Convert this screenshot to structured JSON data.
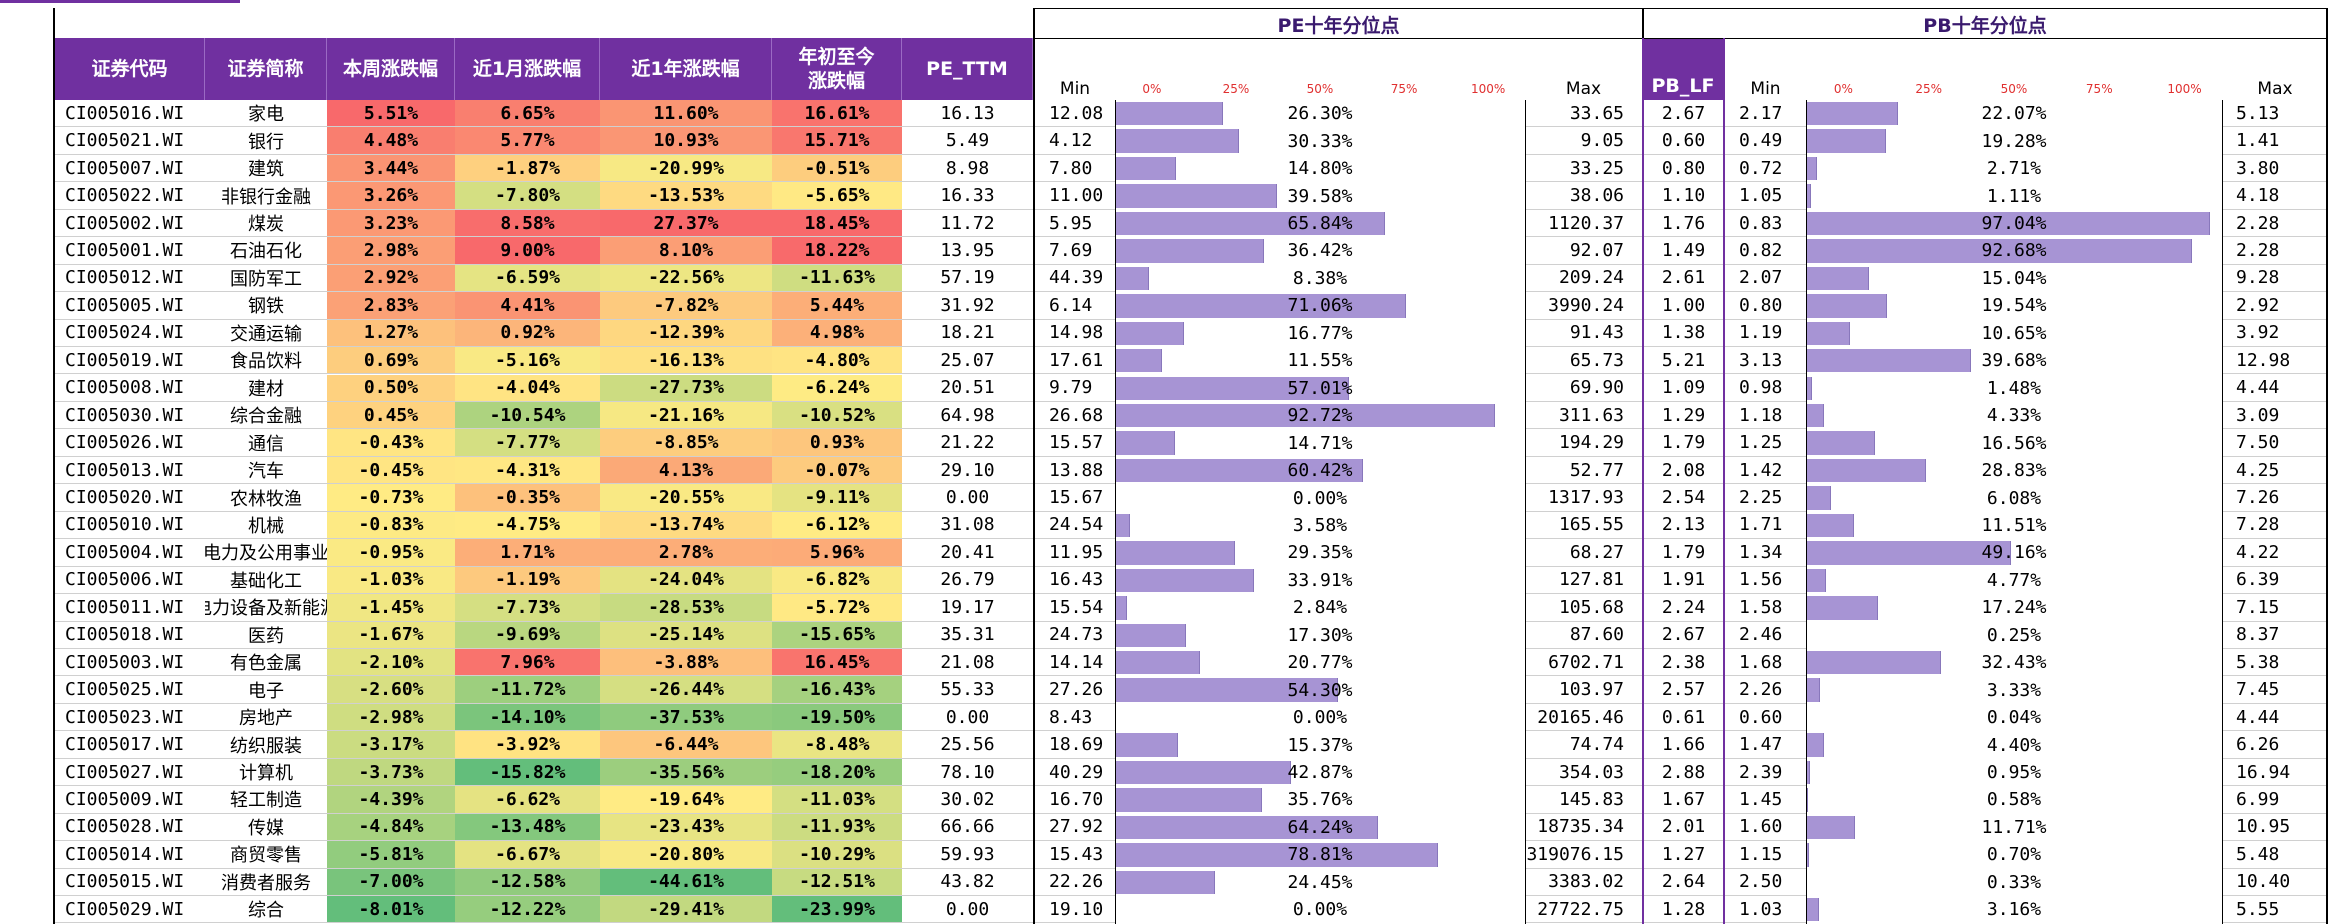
{
  "groups": {
    "pe": "PE十年分位点",
    "pb": "PB十年分位点"
  },
  "headers": {
    "code": "证券代码",
    "name": "证券简称",
    "week": "本周涨跌幅",
    "month": "近1月涨跌幅",
    "year": "近1年涨跌幅",
    "ytd_line1": "年初至今",
    "ytd_line2": "涨跌幅",
    "pe_ttm": "PE_TTM",
    "pb_lf": "PB_LF",
    "min": "Min",
    "max": "Max"
  },
  "scale": [
    "0%",
    "25%",
    "50%",
    "75%",
    "100%"
  ],
  "colors": {
    "header": "#7030a0",
    "bar": "#a794d4",
    "pos_strong": "#f8696b",
    "neutral": "#ffeb84",
    "neg_strong": "#63be7b"
  },
  "rows": [
    {
      "code": "CI005016.WI",
      "name": "家电",
      "week": "5.51%",
      "month": "6.65%",
      "year": "11.60%",
      "ytd": "16.61%",
      "pe": "16.13",
      "pe_min": "12.08",
      "pe_pct": "26.30%",
      "pe_max": "33.65",
      "pb": "2.67",
      "pb_min": "2.17",
      "pb_pct": "22.07%",
      "pb_max": "5.13"
    },
    {
      "code": "CI005021.WI",
      "name": "银行",
      "week": "4.48%",
      "month": "5.77%",
      "year": "10.93%",
      "ytd": "15.71%",
      "pe": "5.49",
      "pe_min": "4.12",
      "pe_pct": "30.33%",
      "pe_max": "9.05",
      "pb": "0.60",
      "pb_min": "0.49",
      "pb_pct": "19.28%",
      "pb_max": "1.41"
    },
    {
      "code": "CI005007.WI",
      "name": "建筑",
      "week": "3.44%",
      "month": "-1.87%",
      "year": "-20.99%",
      "ytd": "-0.51%",
      "pe": "8.98",
      "pe_min": "7.80",
      "pe_pct": "14.80%",
      "pe_max": "33.25",
      "pb": "0.80",
      "pb_min": "0.72",
      "pb_pct": "2.71%",
      "pb_max": "3.80"
    },
    {
      "code": "CI005022.WI",
      "name": "非银行金融",
      "week": "3.26%",
      "month": "-7.80%",
      "year": "-13.53%",
      "ytd": "-5.65%",
      "pe": "16.33",
      "pe_min": "11.00",
      "pe_pct": "39.58%",
      "pe_max": "38.06",
      "pb": "1.10",
      "pb_min": "1.05",
      "pb_pct": "1.11%",
      "pb_max": "4.18"
    },
    {
      "code": "CI005002.WI",
      "name": "煤炭",
      "week": "3.23%",
      "month": "8.58%",
      "year": "27.37%",
      "ytd": "18.45%",
      "pe": "11.72",
      "pe_min": "5.95",
      "pe_pct": "65.84%",
      "pe_max": "1120.37",
      "pb": "1.76",
      "pb_min": "0.83",
      "pb_pct": "97.04%",
      "pb_max": "2.28"
    },
    {
      "code": "CI005001.WI",
      "name": "石油石化",
      "week": "2.98%",
      "month": "9.00%",
      "year": "8.10%",
      "ytd": "18.22%",
      "pe": "13.95",
      "pe_min": "7.69",
      "pe_pct": "36.42%",
      "pe_max": "92.07",
      "pb": "1.49",
      "pb_min": "0.82",
      "pb_pct": "92.68%",
      "pb_max": "2.28"
    },
    {
      "code": "CI005012.WI",
      "name": "国防军工",
      "week": "2.92%",
      "month": "-6.59%",
      "year": "-22.56%",
      "ytd": "-11.63%",
      "pe": "57.19",
      "pe_min": "44.39",
      "pe_pct": "8.38%",
      "pe_max": "209.24",
      "pb": "2.61",
      "pb_min": "2.07",
      "pb_pct": "15.04%",
      "pb_max": "9.28"
    },
    {
      "code": "CI005005.WI",
      "name": "钢铁",
      "week": "2.83%",
      "month": "4.41%",
      "year": "-7.82%",
      "ytd": "5.44%",
      "pe": "31.92",
      "pe_min": "6.14",
      "pe_pct": "71.06%",
      "pe_max": "3990.24",
      "pb": "1.00",
      "pb_min": "0.80",
      "pb_pct": "19.54%",
      "pb_max": "2.92"
    },
    {
      "code": "CI005024.WI",
      "name": "交通运输",
      "week": "1.27%",
      "month": "0.92%",
      "year": "-12.39%",
      "ytd": "4.98%",
      "pe": "18.21",
      "pe_min": "14.98",
      "pe_pct": "16.77%",
      "pe_max": "91.43",
      "pb": "1.38",
      "pb_min": "1.19",
      "pb_pct": "10.65%",
      "pb_max": "3.92"
    },
    {
      "code": "CI005019.WI",
      "name": "食品饮料",
      "week": "0.69%",
      "month": "-5.16%",
      "year": "-16.13%",
      "ytd": "-4.80%",
      "pe": "25.07",
      "pe_min": "17.61",
      "pe_pct": "11.55%",
      "pe_max": "65.73",
      "pb": "5.21",
      "pb_min": "3.13",
      "pb_pct": "39.68%",
      "pb_max": "12.98"
    },
    {
      "code": "CI005008.WI",
      "name": "建材",
      "week": "0.50%",
      "month": "-4.04%",
      "year": "-27.73%",
      "ytd": "-6.24%",
      "pe": "20.51",
      "pe_min": "9.79",
      "pe_pct": "57.01%",
      "pe_max": "69.90",
      "pb": "1.09",
      "pb_min": "0.98",
      "pb_pct": "1.48%",
      "pb_max": "4.44"
    },
    {
      "code": "CI005030.WI",
      "name": "综合金融",
      "week": "0.45%",
      "month": "-10.54%",
      "year": "-21.16%",
      "ytd": "-10.52%",
      "pe": "64.98",
      "pe_min": "26.68",
      "pe_pct": "92.72%",
      "pe_max": "311.63",
      "pb": "1.29",
      "pb_min": "1.18",
      "pb_pct": "4.33%",
      "pb_max": "3.09"
    },
    {
      "code": "CI005026.WI",
      "name": "通信",
      "week": "-0.43%",
      "month": "-7.77%",
      "year": "-8.85%",
      "ytd": "0.93%",
      "pe": "21.22",
      "pe_min": "15.57",
      "pe_pct": "14.71%",
      "pe_max": "194.29",
      "pb": "1.79",
      "pb_min": "1.25",
      "pb_pct": "16.56%",
      "pb_max": "7.50"
    },
    {
      "code": "CI005013.WI",
      "name": "汽车",
      "week": "-0.45%",
      "month": "-4.31%",
      "year": "4.13%",
      "ytd": "-0.07%",
      "pe": "29.10",
      "pe_min": "13.88",
      "pe_pct": "60.42%",
      "pe_max": "52.77",
      "pb": "2.08",
      "pb_min": "1.42",
      "pb_pct": "28.83%",
      "pb_max": "4.25"
    },
    {
      "code": "CI005020.WI",
      "name": "农林牧渔",
      "week": "-0.73%",
      "month": "-0.35%",
      "year": "-20.55%",
      "ytd": "-9.11%",
      "pe": "0.00",
      "pe_min": "15.67",
      "pe_pct": "0.00%",
      "pe_max": "1317.93",
      "pb": "2.54",
      "pb_min": "2.25",
      "pb_pct": "6.08%",
      "pb_max": "7.26"
    },
    {
      "code": "CI005010.WI",
      "name": "机械",
      "week": "-0.83%",
      "month": "-4.75%",
      "year": "-13.74%",
      "ytd": "-6.12%",
      "pe": "31.08",
      "pe_min": "24.54",
      "pe_pct": "3.58%",
      "pe_max": "165.55",
      "pb": "2.13",
      "pb_min": "1.71",
      "pb_pct": "11.51%",
      "pb_max": "7.28"
    },
    {
      "code": "CI005004.WI",
      "name": "电力及公用事业",
      "week": "-0.95%",
      "month": "1.71%",
      "year": "2.78%",
      "ytd": "5.96%",
      "pe": "20.41",
      "pe_min": "11.95",
      "pe_pct": "29.35%",
      "pe_max": "68.27",
      "pb": "1.79",
      "pb_min": "1.34",
      "pb_pct": "49.16%",
      "pb_max": "4.22"
    },
    {
      "code": "CI005006.WI",
      "name": "基础化工",
      "week": "-1.03%",
      "month": "-1.19%",
      "year": "-24.04%",
      "ytd": "-6.82%",
      "pe": "26.79",
      "pe_min": "16.43",
      "pe_pct": "33.91%",
      "pe_max": "127.81",
      "pb": "1.91",
      "pb_min": "1.56",
      "pb_pct": "4.77%",
      "pb_max": "6.39"
    },
    {
      "code": "CI005011.WI",
      "name": "电力设备及新能源",
      "week": "-1.45%",
      "month": "-7.73%",
      "year": "-28.53%",
      "ytd": "-5.72%",
      "pe": "19.17",
      "pe_min": "15.54",
      "pe_pct": "2.84%",
      "pe_max": "105.68",
      "pb": "2.24",
      "pb_min": "1.58",
      "pb_pct": "17.24%",
      "pb_max": "7.15"
    },
    {
      "code": "CI005018.WI",
      "name": "医药",
      "week": "-1.67%",
      "month": "-9.69%",
      "year": "-25.14%",
      "ytd": "-15.65%",
      "pe": "35.31",
      "pe_min": "24.73",
      "pe_pct": "17.30%",
      "pe_max": "87.60",
      "pb": "2.67",
      "pb_min": "2.46",
      "pb_pct": "0.25%",
      "pb_max": "8.37"
    },
    {
      "code": "CI005003.WI",
      "name": "有色金属",
      "week": "-2.10%",
      "month": "7.96%",
      "year": "-3.88%",
      "ytd": "16.45%",
      "pe": "21.08",
      "pe_min": "14.14",
      "pe_pct": "20.77%",
      "pe_max": "6702.71",
      "pb": "2.38",
      "pb_min": "1.68",
      "pb_pct": "32.43%",
      "pb_max": "5.38"
    },
    {
      "code": "CI005025.WI",
      "name": "电子",
      "week": "-2.60%",
      "month": "-11.72%",
      "year": "-26.44%",
      "ytd": "-16.43%",
      "pe": "55.33",
      "pe_min": "27.26",
      "pe_pct": "54.30%",
      "pe_max": "103.97",
      "pb": "2.57",
      "pb_min": "2.26",
      "pb_pct": "3.33%",
      "pb_max": "7.45"
    },
    {
      "code": "CI005023.WI",
      "name": "房地产",
      "week": "-2.98%",
      "month": "-14.10%",
      "year": "-37.53%",
      "ytd": "-19.50%",
      "pe": "0.00",
      "pe_min": "8.43",
      "pe_pct": "0.00%",
      "pe_max": "20165.46",
      "pb": "0.61",
      "pb_min": "0.60",
      "pb_pct": "0.04%",
      "pb_max": "4.44"
    },
    {
      "code": "CI005017.WI",
      "name": "纺织服装",
      "week": "-3.17%",
      "month": "-3.92%",
      "year": "-6.44%",
      "ytd": "-8.48%",
      "pe": "25.56",
      "pe_min": "18.69",
      "pe_pct": "15.37%",
      "pe_max": "74.74",
      "pb": "1.66",
      "pb_min": "1.47",
      "pb_pct": "4.40%",
      "pb_max": "6.26"
    },
    {
      "code": "CI005027.WI",
      "name": "计算机",
      "week": "-3.73%",
      "month": "-15.82%",
      "year": "-35.56%",
      "ytd": "-18.20%",
      "pe": "78.10",
      "pe_min": "40.29",
      "pe_pct": "42.87%",
      "pe_max": "354.03",
      "pb": "2.88",
      "pb_min": "2.39",
      "pb_pct": "0.95%",
      "pb_max": "16.94"
    },
    {
      "code": "CI005009.WI",
      "name": "轻工制造",
      "week": "-4.39%",
      "month": "-6.62%",
      "year": "-19.64%",
      "ytd": "-11.03%",
      "pe": "30.02",
      "pe_min": "16.70",
      "pe_pct": "35.76%",
      "pe_max": "145.83",
      "pb": "1.67",
      "pb_min": "1.45",
      "pb_pct": "0.58%",
      "pb_max": "6.99"
    },
    {
      "code": "CI005028.WI",
      "name": "传媒",
      "week": "-4.84%",
      "month": "-13.48%",
      "year": "-23.43%",
      "ytd": "-11.93%",
      "pe": "66.66",
      "pe_min": "27.92",
      "pe_pct": "64.24%",
      "pe_max": "18735.34",
      "pb": "2.01",
      "pb_min": "1.60",
      "pb_pct": "11.71%",
      "pb_max": "10.95"
    },
    {
      "code": "CI005014.WI",
      "name": "商贸零售",
      "week": "-5.81%",
      "month": "-6.67%",
      "year": "-20.80%",
      "ytd": "-10.29%",
      "pe": "59.93",
      "pe_min": "15.43",
      "pe_pct": "78.81%",
      "pe_max": "319076.15",
      "pb": "1.27",
      "pb_min": "1.15",
      "pb_pct": "0.70%",
      "pb_max": "5.48"
    },
    {
      "code": "CI005015.WI",
      "name": "消费者服务",
      "week": "-7.00%",
      "month": "-12.58%",
      "year": "-44.61%",
      "ytd": "-12.51%",
      "pe": "43.82",
      "pe_min": "22.26",
      "pe_pct": "24.45%",
      "pe_max": "3383.02",
      "pb": "2.64",
      "pb_min": "2.50",
      "pb_pct": "0.33%",
      "pb_max": "10.40"
    },
    {
      "code": "CI005029.WI",
      "name": "综合",
      "week": "-8.01%",
      "month": "-12.22%",
      "year": "-29.41%",
      "ytd": "-23.99%",
      "pe": "0.00",
      "pe_min": "19.10",
      "pe_pct": "0.00%",
      "pe_max": "27722.75",
      "pb": "1.28",
      "pb_min": "1.03",
      "pb_pct": "3.16%",
      "pb_max": "5.55"
    }
  ]
}
